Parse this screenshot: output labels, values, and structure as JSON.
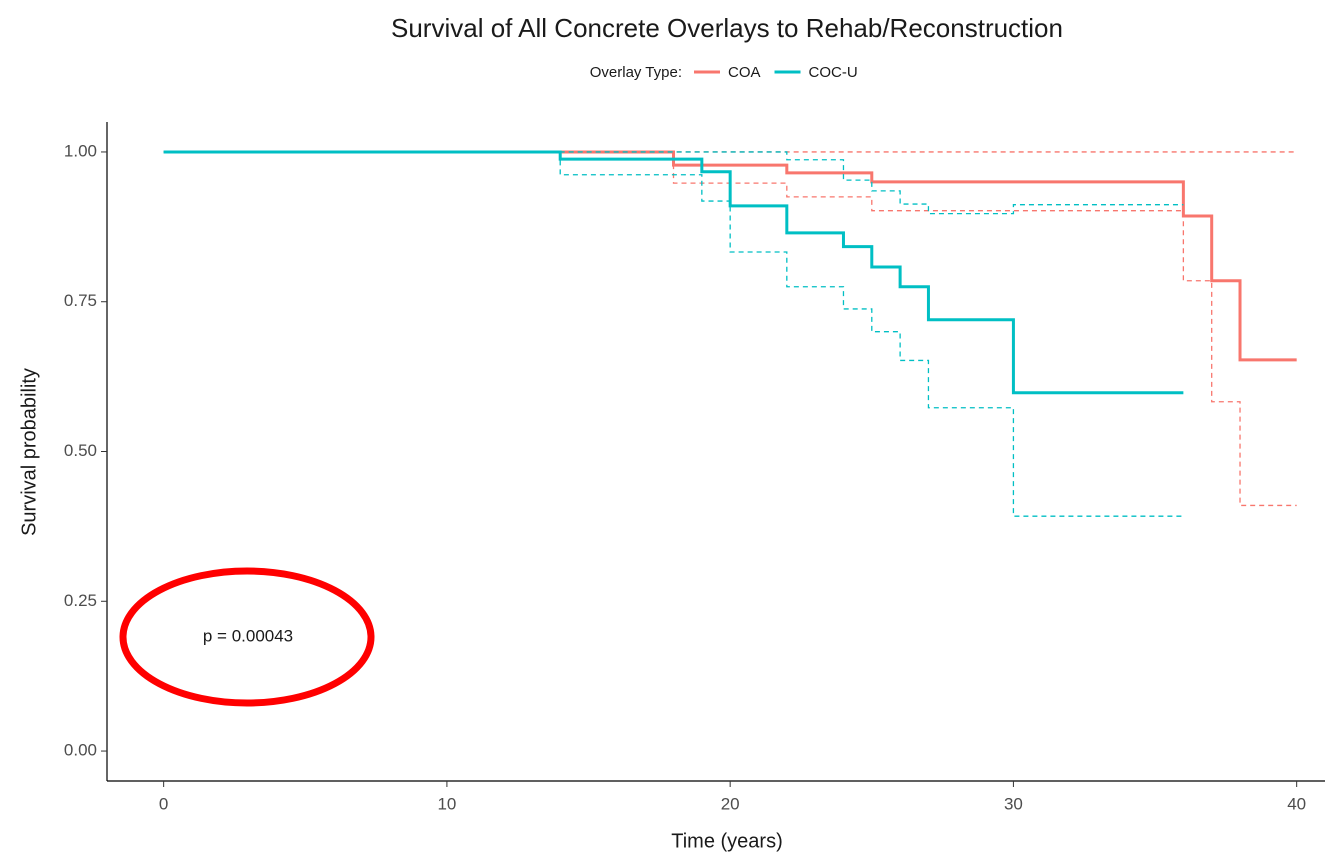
{
  "chart_data": {
    "type": "step",
    "title": "Survival of All Concrete Overlays to Rehab/Reconstruction",
    "x_label": "Time (years)",
    "y_label": "Survival probability",
    "legend_title": "Overlay Type:",
    "annotation": "p = 0.00043",
    "xlim": [
      -2,
      41
    ],
    "ylim": [
      -0.05,
      1.05
    ],
    "xticks": [
      0,
      10,
      20,
      30,
      40
    ],
    "yticks": [
      {
        "value": 0,
        "label": "0.00"
      },
      {
        "value": 0.25,
        "label": "0.25"
      },
      {
        "value": 0.5,
        "label": "0.50"
      },
      {
        "value": 0.75,
        "label": "0.75"
      },
      {
        "value": 1,
        "label": "1.00"
      }
    ],
    "series": [
      {
        "name": "COA",
        "color": "#F8766D",
        "x": [
          0,
          18,
          22,
          25,
          36,
          37,
          38,
          40
        ],
        "values": [
          1,
          0.978,
          0.965,
          0.95,
          0.893,
          0.785,
          0.653,
          0.653
        ],
        "lower": [
          1,
          0.948,
          0.925,
          0.902,
          0.785,
          0.583,
          0.41,
          0.41
        ],
        "upper": [
          1,
          1,
          1,
          1,
          1,
          1,
          1,
          1
        ]
      },
      {
        "name": "COC-U",
        "color": "#00BFC4",
        "x": [
          0,
          14,
          19,
          20,
          22,
          24,
          25,
          26,
          27,
          30,
          36
        ],
        "values": [
          1,
          0.988,
          0.967,
          0.91,
          0.865,
          0.842,
          0.808,
          0.775,
          0.72,
          0.598,
          0.598
        ],
        "lower": [
          1,
          0.962,
          0.918,
          0.833,
          0.775,
          0.738,
          0.7,
          0.652,
          0.573,
          0.392,
          0.392
        ],
        "upper": [
          1,
          1,
          1,
          1,
          0.987,
          0.953,
          0.935,
          0.913,
          0.897,
          0.912,
          0.912
        ]
      }
    ]
  }
}
